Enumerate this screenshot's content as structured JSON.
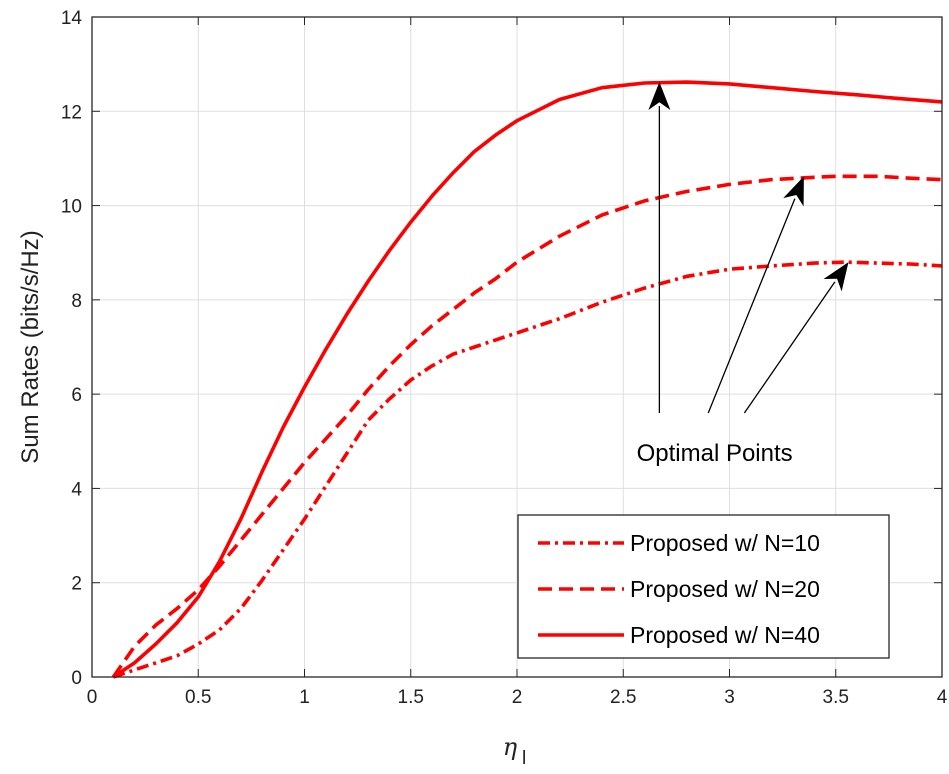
{
  "chart_data": {
    "type": "line",
    "title": "",
    "xlabel": "η",
    "xlabel_subscript": "l",
    "ylabel": "Sum Rates (bits/s/Hz)",
    "xlim": [
      0,
      4
    ],
    "ylim": [
      0,
      14
    ],
    "xticks": [
      0,
      0.5,
      1,
      1.5,
      2,
      2.5,
      3,
      3.5,
      4
    ],
    "xtick_labels": [
      "0",
      "0.5",
      "1",
      "1.5",
      "2",
      "2.5",
      "3",
      "3.5",
      "4"
    ],
    "yticks": [
      0,
      2,
      4,
      6,
      8,
      10,
      12,
      14
    ],
    "ytick_labels": [
      "0",
      "2",
      "4",
      "6",
      "8",
      "10",
      "12",
      "14"
    ],
    "grid": true,
    "legend_position": "bottom-right",
    "line_color": "#ff0000",
    "series": [
      {
        "name": "Proposed w/ N=10",
        "style": "dashdot",
        "x": [
          0.1,
          0.2,
          0.3,
          0.4,
          0.5,
          0.6,
          0.7,
          0.8,
          0.9,
          1.0,
          1.1,
          1.2,
          1.3,
          1.4,
          1.5,
          1.6,
          1.7,
          1.8,
          1.9,
          2.0,
          2.2,
          2.4,
          2.6,
          2.8,
          3.0,
          3.2,
          3.4,
          3.55,
          3.7,
          3.85,
          4.0
        ],
        "y": [
          0.0,
          0.15,
          0.3,
          0.45,
          0.7,
          1.0,
          1.45,
          2.05,
          2.7,
          3.35,
          4.05,
          4.75,
          5.45,
          5.9,
          6.3,
          6.6,
          6.85,
          7.0,
          7.15,
          7.3,
          7.6,
          7.95,
          8.25,
          8.5,
          8.65,
          8.72,
          8.78,
          8.8,
          8.78,
          8.76,
          8.72
        ]
      },
      {
        "name": "Proposed w/ N=20",
        "style": "dashed",
        "x": [
          0.1,
          0.2,
          0.3,
          0.4,
          0.5,
          0.6,
          0.7,
          0.8,
          0.9,
          1.0,
          1.1,
          1.2,
          1.3,
          1.4,
          1.5,
          1.6,
          1.7,
          1.8,
          1.9,
          2.0,
          2.2,
          2.4,
          2.6,
          2.8,
          3.0,
          3.2,
          3.4,
          3.5,
          3.7,
          3.85,
          4.0
        ],
        "y": [
          0.0,
          0.65,
          1.1,
          1.45,
          1.85,
          2.35,
          2.9,
          3.45,
          4.0,
          4.55,
          5.05,
          5.55,
          6.1,
          6.6,
          7.05,
          7.45,
          7.8,
          8.15,
          8.45,
          8.8,
          9.35,
          9.8,
          10.1,
          10.3,
          10.45,
          10.55,
          10.6,
          10.62,
          10.62,
          10.58,
          10.55
        ]
      },
      {
        "name": "Proposed w/ N=40",
        "style": "solid",
        "x": [
          0.1,
          0.2,
          0.3,
          0.4,
          0.5,
          0.6,
          0.7,
          0.8,
          0.9,
          1.0,
          1.1,
          1.2,
          1.3,
          1.4,
          1.5,
          1.6,
          1.7,
          1.8,
          1.9,
          2.0,
          2.2,
          2.4,
          2.6,
          2.8,
          3.0,
          3.2,
          3.4,
          3.6,
          3.8,
          4.0
        ],
        "y": [
          0.0,
          0.3,
          0.7,
          1.15,
          1.7,
          2.45,
          3.35,
          4.35,
          5.3,
          6.15,
          6.95,
          7.7,
          8.4,
          9.05,
          9.65,
          10.2,
          10.7,
          11.15,
          11.5,
          11.8,
          12.25,
          12.5,
          12.6,
          12.62,
          12.58,
          12.5,
          12.42,
          12.35,
          12.27,
          12.2
        ]
      }
    ],
    "annotations": {
      "text": "Optimal Points",
      "text_anchor": [
        2.93,
        4.9
      ],
      "arrows": [
        {
          "from": [
            2.67,
            5.6
          ],
          "to": [
            2.67,
            12.62
          ]
        },
        {
          "from": [
            2.9,
            5.6
          ],
          "to": [
            3.35,
            10.62
          ]
        },
        {
          "from": [
            3.07,
            5.6
          ],
          "to": [
            3.56,
            8.8
          ]
        }
      ]
    }
  }
}
